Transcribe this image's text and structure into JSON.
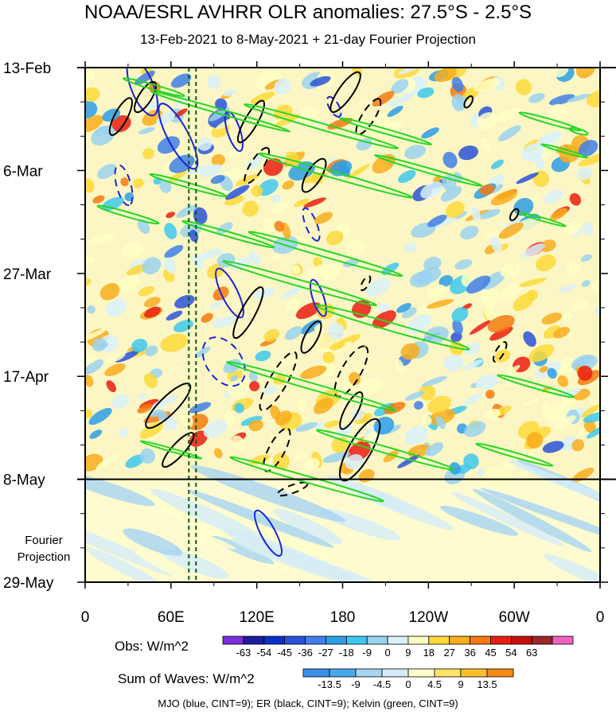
{
  "header": {
    "title": "NOAA/ESRL AVHRR OLR anomalies: 27.5°S - 2.5°S",
    "subtitle": "13-Feb-2021 to 8-May-2021 + 21-day Fourier Projection"
  },
  "chart_data": {
    "type": "heatmap",
    "xlabel": "",
    "ylabel": "",
    "x_ticks": [
      {
        "lon": 0,
        "label": "0"
      },
      {
        "lon": 60,
        "label": "60E"
      },
      {
        "lon": 120,
        "label": "120E"
      },
      {
        "lon": 180,
        "label": "180"
      },
      {
        "lon": 240,
        "label": "120W"
      },
      {
        "lon": 300,
        "label": "60W"
      },
      {
        "lon": 360,
        "label": "0"
      }
    ],
    "xlim": [
      0,
      360
    ],
    "y_ticks": [
      {
        "day": 0,
        "label": "13-Feb"
      },
      {
        "day": 21,
        "label": "6-Mar"
      },
      {
        "day": 42,
        "label": "27-Mar"
      },
      {
        "day": 63,
        "label": "17-Apr"
      },
      {
        "day": 84,
        "label": "8-May"
      },
      {
        "day": 105,
        "label": "29-May"
      }
    ],
    "ylim_days": [
      0,
      105
    ],
    "observation_end_day": 84,
    "projection_label": [
      "Fourier",
      "Projection"
    ],
    "reference_lines_lon": [
      72.5,
      77.5
    ],
    "obs_colorbar": {
      "label": "Obs: W/m^2",
      "levels": [
        "-63",
        "-54",
        "-45",
        "-36",
        "-27",
        "-18",
        "-9",
        "0",
        "9",
        "18",
        "27",
        "36",
        "45",
        "54",
        "63"
      ],
      "colors": [
        "#7b2fe0",
        "#1c1c9c",
        "#0b30c8",
        "#2a52d8",
        "#3f7fe8",
        "#2c9ee6",
        "#3ec8ef",
        "#9ad2f0",
        "#d8f1fa",
        "#ffffc4",
        "#fdd93a",
        "#f8ad1d",
        "#f47a10",
        "#ea1d11",
        "#c4100b",
        "#9a2626",
        "#ef62be"
      ]
    },
    "waves_colorbar": {
      "label": "Sum of Waves: W/m^2",
      "levels": [
        "-13.5",
        "-9",
        "-4.5",
        "0",
        "4.5",
        "9",
        "13.5"
      ],
      "colors": [
        "#3a8fe6",
        "#48a8ec",
        "#a6d4f2",
        "#d4ecf8",
        "#ffffcc",
        "#fde26a",
        "#fbbf2a",
        "#f48a12"
      ]
    },
    "series": [
      {
        "name": "MJO",
        "color": "#1a23d8",
        "cint": 9
      },
      {
        "name": "ER",
        "color": "#000000",
        "cint": 9
      },
      {
        "name": "Kelvin",
        "color": "#27d627",
        "cint": 9
      }
    ]
  },
  "footnote": "MJO (blue, CINT=9); ER (black, CINT=9); Kelvin (green, CINT=9)"
}
